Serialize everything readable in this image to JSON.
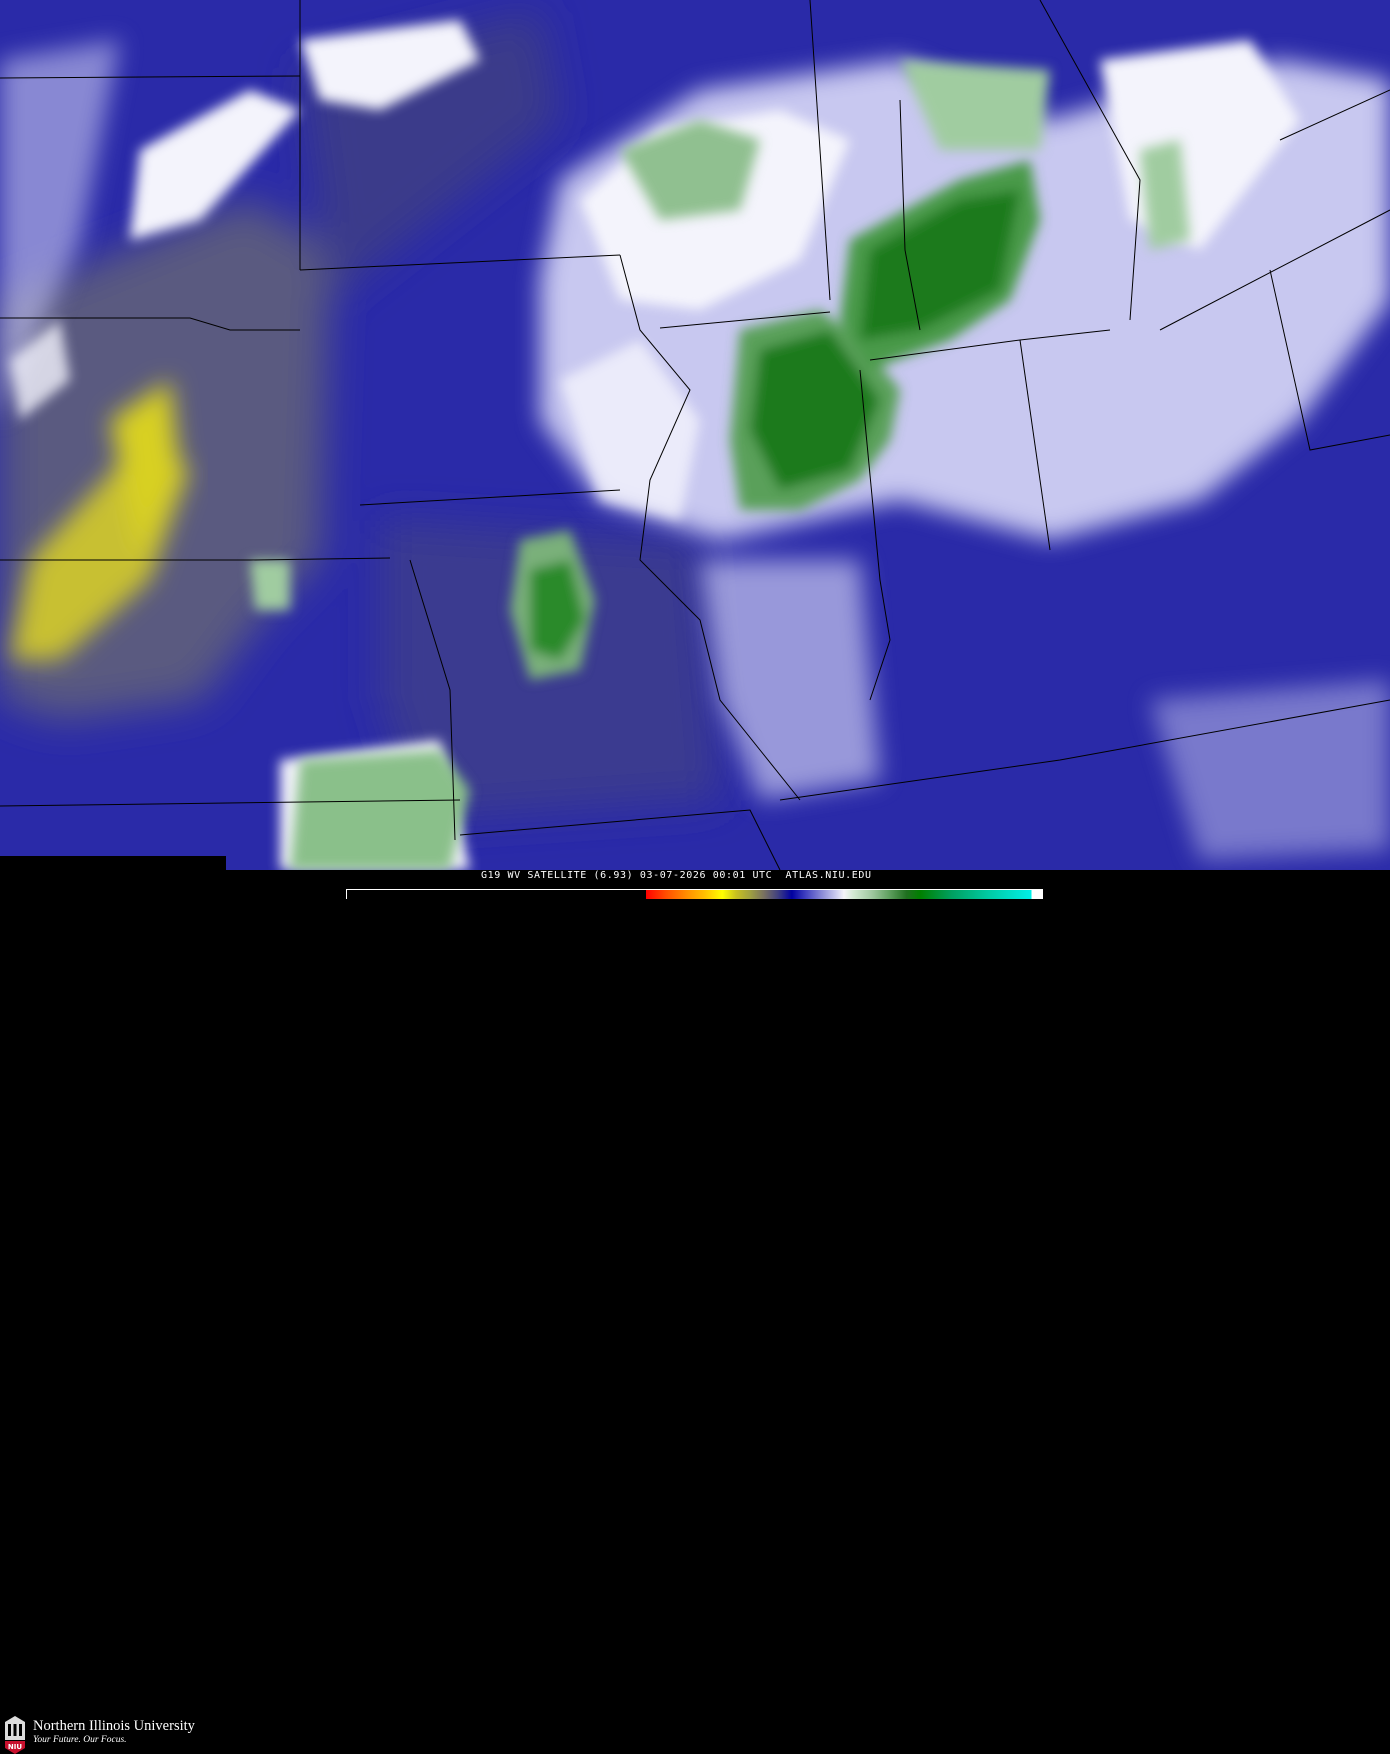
{
  "product": {
    "caption": "G19 WV SATELLITE (6.93) 03-07-2026 00:01 UTC  ATLAS.NIU.EDU"
  },
  "logo": {
    "name": "Northern Illinois University",
    "tagline": "Your Future. Our Focus.",
    "seal_text": "NIU"
  },
  "colorbar": {
    "colors": [
      "#000000",
      "#ff0000",
      "#ff9000",
      "#ffff00",
      "#a0a040",
      "#787060",
      "#0000a0",
      "#9090d8",
      "#f4f4f8",
      "#a0c8a0",
      "#008000",
      "#00c8a0",
      "#00f0e8"
    ]
  },
  "map": {
    "background_color": "#2a2aa8",
    "moist_color": "#ffffff",
    "very_moist_color": "#1a7a1a",
    "dry_color": "#d8d020"
  }
}
